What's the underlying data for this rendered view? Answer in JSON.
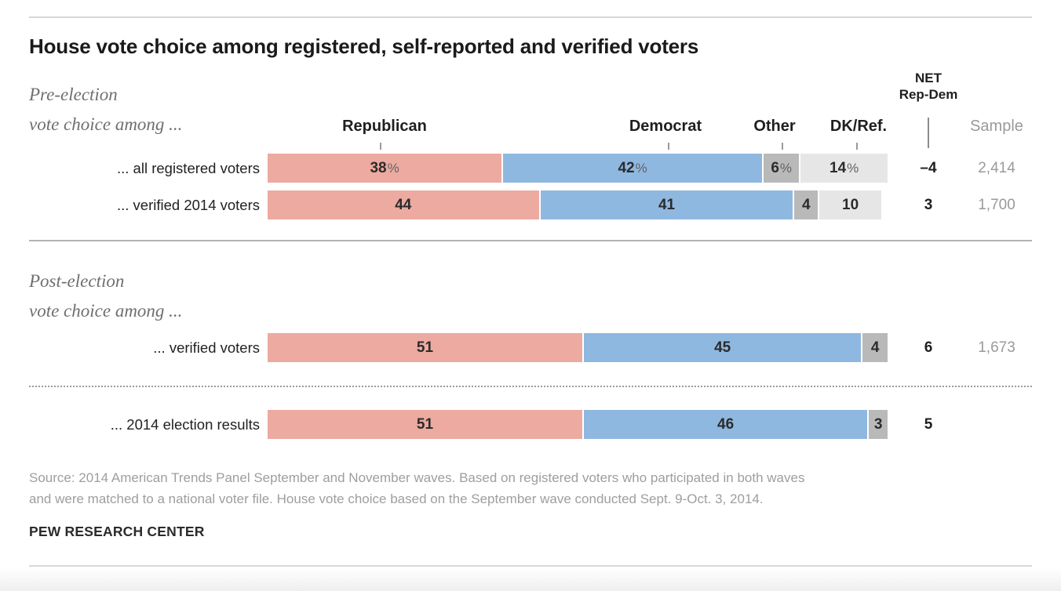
{
  "header": {
    "title": "House vote choice among registered, self-reported and verified voters"
  },
  "columns": {
    "republican": "Republican",
    "democrat": "Democrat",
    "other": "Other",
    "dkref": "DK/Ref.",
    "net_line1": "NET",
    "net_line2": "Rep-Dem",
    "sample": "Sample"
  },
  "sections": {
    "pre": {
      "line1": "Pre-election",
      "line2": "vote choice among ..."
    },
    "post": {
      "line1": "Post-election",
      "line2": "vote choice among ..."
    }
  },
  "chart_data": {
    "type": "bar",
    "stacked": true,
    "orientation": "horizontal",
    "unit": "percent",
    "x_max": 100,
    "series_names": [
      "Republican",
      "Democrat",
      "Other",
      "DK/Ref."
    ],
    "colors": {
      "republican": "#ecaaa0",
      "democrat": "#8fb8e0",
      "other": "#b9b9b9",
      "dkref": "#e6e6e6"
    },
    "rows": [
      {
        "section": "Pre-election",
        "label": "... all registered voters",
        "values": [
          38,
          42,
          6,
          14
        ],
        "value_labels": [
          "38%",
          "42%",
          "6%",
          "14%"
        ],
        "net": "–4",
        "sample": "2,414"
      },
      {
        "section": "Pre-election",
        "label": "... verified 2014 voters",
        "values": [
          44,
          41,
          4,
          10
        ],
        "value_labels": [
          "44",
          "41",
          "4",
          "10"
        ],
        "net": "3",
        "sample": "1,700"
      },
      {
        "section": "Post-election",
        "label": "... verified voters",
        "values": [
          51,
          45,
          4
        ],
        "value_labels": [
          "51",
          "45",
          "4"
        ],
        "net": "6",
        "sample": "1,673"
      },
      {
        "section": "Post-election",
        "label": "... 2014 election results",
        "values": [
          51,
          46,
          3
        ],
        "value_labels": [
          "51",
          "46",
          "3"
        ],
        "net": "5",
        "sample": ""
      }
    ]
  },
  "footer": {
    "source_line1": "Source: 2014 American Trends Panel September and November waves. Based on registered voters who participated in both waves",
    "source_line2": "and were matched to a national voter file. House vote choice based on the September wave conducted Sept. 9-Oct. 3, 2014.",
    "brand": "PEW RESEARCH CENTER"
  }
}
